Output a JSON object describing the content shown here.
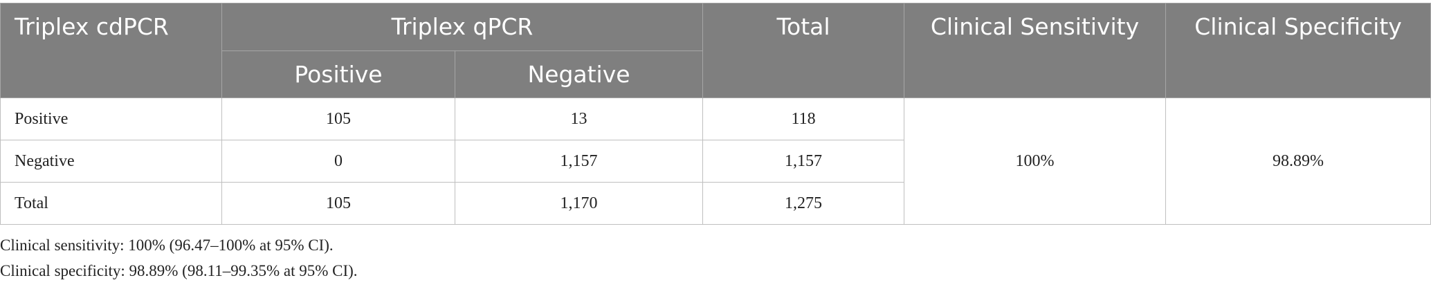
{
  "table": {
    "header": {
      "row_label": "Triplex cdPCR",
      "group": "Triplex qPCR",
      "subcolumns": [
        "Positive",
        "Negative"
      ],
      "total": "Total",
      "sensitivity": "Clinical Sensitivity",
      "specificity": "Clinical Specificity"
    },
    "rows": [
      [
        "Positive",
        "105",
        "13",
        "118"
      ],
      [
        "Negative",
        "0",
        "1,157",
        "1,157"
      ],
      [
        "Total",
        "105",
        "1,170",
        "1,275"
      ]
    ],
    "sensitivity": "100%",
    "specificity": "98.89%"
  },
  "notes": [
    "Clinical sensitivity: 100% (96.47–100% at 95% CI).",
    "Clinical specificity: 98.89% (98.11–99.35% at 95% CI)."
  ]
}
